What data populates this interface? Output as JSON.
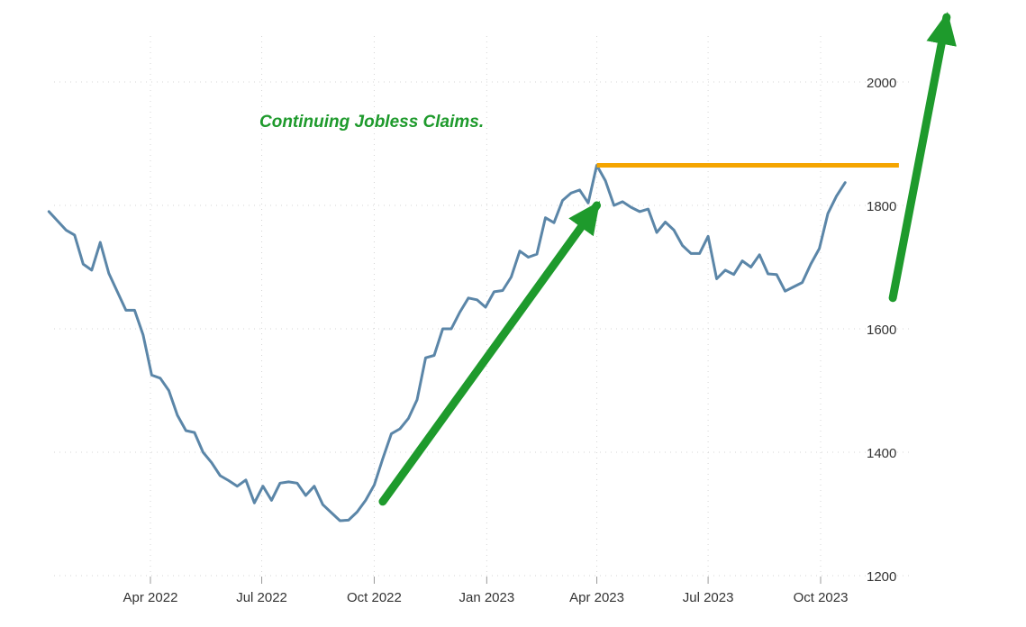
{
  "chart_data": {
    "type": "line",
    "title": "",
    "xlabel": "",
    "ylabel": "",
    "ylim": [
      1200,
      2000
    ],
    "y_ticks": [
      1200,
      1400,
      1600,
      1800,
      2000
    ],
    "x_ticks": [
      {
        "label": "Apr 2022",
        "date": "2022-04-01"
      },
      {
        "label": "Jul 2022",
        "date": "2022-07-01"
      },
      {
        "label": "Oct 2022",
        "date": "2022-10-01"
      },
      {
        "label": "Jan 2023",
        "date": "2023-01-01"
      },
      {
        "label": "Apr 2023",
        "date": "2023-04-01"
      },
      {
        "label": "Jul 2023",
        "date": "2023-07-01"
      },
      {
        "label": "Oct 2023",
        "date": "2023-10-01"
      }
    ],
    "grid": true,
    "line_color": "#5b86a8",
    "series": [
      {
        "values": [
          [
            "2022-01-08",
            1790
          ],
          [
            "2022-01-15",
            1775
          ],
          [
            "2022-01-22",
            1760
          ],
          [
            "2022-01-29",
            1752
          ],
          [
            "2022-02-05",
            1705
          ],
          [
            "2022-02-12",
            1695
          ],
          [
            "2022-02-19",
            1740
          ],
          [
            "2022-02-26",
            1690
          ],
          [
            "2022-03-05",
            1660
          ],
          [
            "2022-03-12",
            1630
          ],
          [
            "2022-03-19",
            1630
          ],
          [
            "2022-03-26",
            1590
          ],
          [
            "2022-04-02",
            1525
          ],
          [
            "2022-04-09",
            1520
          ],
          [
            "2022-04-16",
            1500
          ],
          [
            "2022-04-23",
            1460
          ],
          [
            "2022-04-30",
            1435
          ],
          [
            "2022-05-07",
            1432
          ],
          [
            "2022-05-14",
            1400
          ],
          [
            "2022-05-21",
            1383
          ],
          [
            "2022-05-28",
            1362
          ],
          [
            "2022-06-04",
            1354
          ],
          [
            "2022-06-11",
            1345
          ],
          [
            "2022-06-18",
            1355
          ],
          [
            "2022-06-25",
            1318
          ],
          [
            "2022-07-02",
            1345
          ],
          [
            "2022-07-09",
            1322
          ],
          [
            "2022-07-16",
            1350
          ],
          [
            "2022-07-23",
            1352
          ],
          [
            "2022-07-30",
            1350
          ],
          [
            "2022-08-06",
            1330
          ],
          [
            "2022-08-13",
            1345
          ],
          [
            "2022-08-20",
            1315
          ],
          [
            "2022-08-27",
            1302
          ],
          [
            "2022-09-03",
            1289
          ],
          [
            "2022-09-10",
            1290
          ],
          [
            "2022-09-17",
            1303
          ],
          [
            "2022-09-24",
            1322
          ],
          [
            "2022-10-01",
            1347
          ],
          [
            "2022-10-08",
            1390
          ],
          [
            "2022-10-15",
            1430
          ],
          [
            "2022-10-22",
            1438
          ],
          [
            "2022-10-29",
            1455
          ],
          [
            "2022-11-05",
            1485
          ],
          [
            "2022-11-12",
            1553
          ],
          [
            "2022-11-19",
            1557
          ],
          [
            "2022-11-26",
            1600
          ],
          [
            "2022-12-03",
            1600
          ],
          [
            "2022-12-10",
            1627
          ],
          [
            "2022-12-17",
            1650
          ],
          [
            "2022-12-24",
            1647
          ],
          [
            "2022-12-31",
            1635
          ],
          [
            "2023-01-07",
            1660
          ],
          [
            "2023-01-14",
            1662
          ],
          [
            "2023-01-21",
            1684
          ],
          [
            "2023-01-28",
            1726
          ],
          [
            "2023-02-04",
            1716
          ],
          [
            "2023-02-11",
            1721
          ],
          [
            "2023-02-18",
            1780
          ],
          [
            "2023-02-25",
            1772
          ],
          [
            "2023-03-04",
            1808
          ],
          [
            "2023-03-11",
            1820
          ],
          [
            "2023-03-18",
            1825
          ],
          [
            "2023-03-25",
            1804
          ],
          [
            "2023-04-01",
            1865
          ],
          [
            "2023-04-08",
            1840
          ],
          [
            "2023-04-15",
            1800
          ],
          [
            "2023-04-22",
            1806
          ],
          [
            "2023-04-29",
            1797
          ],
          [
            "2023-05-06",
            1790
          ],
          [
            "2023-05-13",
            1794
          ],
          [
            "2023-05-20",
            1756
          ],
          [
            "2023-05-27",
            1773
          ],
          [
            "2023-06-03",
            1760
          ],
          [
            "2023-06-10",
            1735
          ],
          [
            "2023-06-17",
            1722
          ],
          [
            "2023-06-24",
            1722
          ],
          [
            "2023-07-01",
            1750
          ],
          [
            "2023-07-08",
            1681
          ],
          [
            "2023-07-15",
            1695
          ],
          [
            "2023-07-22",
            1688
          ],
          [
            "2023-07-29",
            1710
          ],
          [
            "2023-08-05",
            1700
          ],
          [
            "2023-08-12",
            1720
          ],
          [
            "2023-08-19",
            1689
          ],
          [
            "2023-08-26",
            1688
          ],
          [
            "2023-09-02",
            1661
          ],
          [
            "2023-09-09",
            1668
          ],
          [
            "2023-09-16",
            1675
          ],
          [
            "2023-09-23",
            1705
          ],
          [
            "2023-09-30",
            1730
          ],
          [
            "2023-10-07",
            1787
          ],
          [
            "2023-10-14",
            1815
          ],
          [
            "2023-10-21",
            1837
          ]
        ]
      }
    ],
    "annotations": [
      {
        "type": "text",
        "text": "Continuing Jobless Claims.",
        "color": "#1e9a2c"
      },
      {
        "type": "hline",
        "value": 1865,
        "from": "2023-04-01",
        "to": "2023-12-04",
        "color": "#f5a500"
      },
      {
        "type": "arrow",
        "from": [
          "2022-10-08",
          1320
        ],
        "to": [
          "2023-04-01",
          1800
        ],
        "color": "#1e9a2c"
      },
      {
        "type": "arrow",
        "from": [
          "2023-11-29",
          1650
        ],
        "to": [
          "2024-01-12",
          2105
        ],
        "color": "#1e9a2c"
      }
    ]
  }
}
